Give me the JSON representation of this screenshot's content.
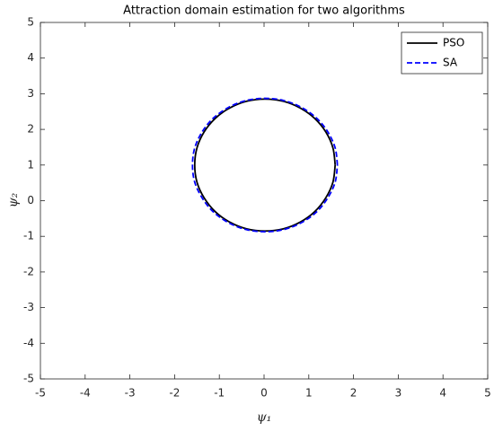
{
  "chart_data": {
    "type": "line",
    "title": "Attraction domain estimation for two algorithms",
    "xlabel": "ψ₁",
    "ylabel": "ψ₂",
    "xlim": [
      -5,
      5
    ],
    "ylim": [
      -5,
      5
    ],
    "xticks": [
      -5,
      -4,
      -3,
      -2,
      -1,
      0,
      1,
      2,
      3,
      4,
      5
    ],
    "yticks": [
      -5,
      -4,
      -3,
      -2,
      -1,
      0,
      1,
      2,
      3,
      4,
      5
    ],
    "legend": "upper right",
    "series": [
      {
        "name": "PSO",
        "color": "#000000",
        "dash": "solid",
        "x": [
          1.59,
          1.54,
          1.38,
          1.13,
          0.81,
          0.43,
          0.02,
          -0.39,
          -0.77,
          -1.09,
          -1.34,
          -1.5,
          -1.55,
          -1.5,
          -1.34,
          -1.09,
          -0.77,
          -0.39,
          0.02,
          0.43,
          0.81,
          1.13,
          1.38,
          1.54,
          1.59
        ],
        "values": [
          1,
          1.48,
          1.93,
          2.31,
          2.6,
          2.79,
          2.85,
          2.79,
          2.6,
          2.31,
          1.93,
          1.48,
          1,
          0.52,
          0.08,
          -0.31,
          -0.6,
          -0.79,
          -0.85,
          -0.79,
          -0.6,
          -0.31,
          0.08,
          0.52,
          1
        ]
      },
      {
        "name": "SA",
        "color": "#0000ff",
        "dash": "dashed",
        "x": [
          1.64,
          1.59,
          1.42,
          1.17,
          0.83,
          0.44,
          0.02,
          -0.4,
          -0.79,
          -1.13,
          -1.38,
          -1.55,
          -1.6,
          -1.55,
          -1.38,
          -1.13,
          -0.79,
          -0.4,
          0.02,
          0.44,
          0.83,
          1.17,
          1.42,
          1.59,
          1.64
        ],
        "values": [
          1,
          1.48,
          1.94,
          2.32,
          2.62,
          2.81,
          2.87,
          2.81,
          2.62,
          2.32,
          1.94,
          1.48,
          1,
          0.52,
          0.07,
          -0.32,
          -0.62,
          -0.81,
          -0.87,
          -0.81,
          -0.62,
          -0.32,
          0.07,
          0.52,
          1
        ]
      }
    ]
  }
}
